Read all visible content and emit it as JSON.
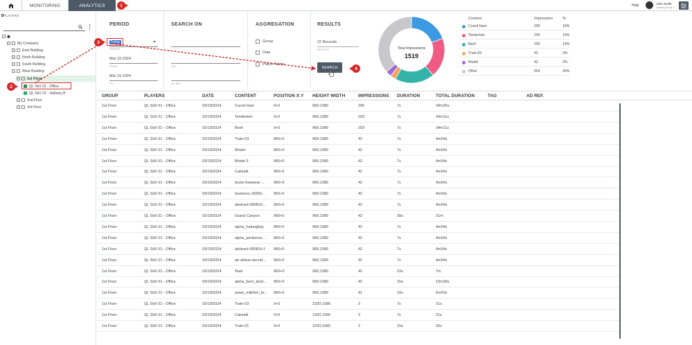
{
  "topbar": {
    "tabs": [
      {
        "label": "MONITORING"
      },
      {
        "label": "ANALYTICS"
      }
    ],
    "help_label": "Help",
    "user_name": "John Smith",
    "user_subtitle": "Training Group 1"
  },
  "players_panel": {
    "title": "PLAYERS",
    "tree": [
      {
        "label": ""
      },
      {
        "label": "My Company"
      },
      {
        "label": "East Building"
      },
      {
        "label": "North Building"
      },
      {
        "label": "South Building"
      },
      {
        "label": "West Building"
      },
      {
        "label": "1st Floor"
      },
      {
        "label": "QL StiX 01 - Office"
      },
      {
        "label": "QL StiX 02 - Hallway B"
      },
      {
        "label": "2nd Floor"
      },
      {
        "label": "3rd Floor"
      }
    ]
  },
  "filters": {
    "period": {
      "title": "PERIOD",
      "value": "Today",
      "caption": "PERIOD",
      "from_value": "Mar 19 2024",
      "from_caption": "FROM",
      "to_value": "Mar 19 2024",
      "to_caption": "TO"
    },
    "search_on": {
      "title": "SEARCH ON",
      "tag_caption": "TAG",
      "adref_caption": "AD REF"
    },
    "aggregation": {
      "title": "AGGREGATION",
      "options": [
        {
          "label": "Group"
        },
        {
          "label": "Date"
        },
        {
          "label": "Player Name"
        }
      ]
    },
    "results": {
      "title": "RESULTS",
      "value": "22 Records",
      "caption": "RESULTS",
      "button_label": "SEARCH"
    }
  },
  "chart_data": {
    "type": "pie",
    "center_label": "Total Impressions",
    "center_value": "1519",
    "legend_headers": [
      "Content",
      "Impression",
      "%"
    ],
    "slices": [
      {
        "name": "Cured Ham",
        "value": 295,
        "pct": "19%",
        "color": "#3b9ae1"
      },
      {
        "name": "Tenderloin",
        "value": 293,
        "pct": "19%",
        "color": "#ef5b84"
      },
      {
        "name": "Beef",
        "value": 293,
        "pct": "19%",
        "color": "#36b3a8"
      },
      {
        "name": "Train-03",
        "value": 42,
        "pct": "3%",
        "color": "#f5a25d"
      },
      {
        "name": "Model",
        "value": 42,
        "pct": "3%",
        "color": "#9b6ad6"
      },
      {
        "name": "Other",
        "value": 554,
        "pct": "36%",
        "color": "#c8c8cc"
      }
    ]
  },
  "table": {
    "headers": [
      "GROUP",
      "PLAYERS",
      "DATE",
      "CONTENT",
      "POSITION X:Y",
      "HEIGHT WIDTH",
      "IMPRESSIONS",
      "DURATION",
      "TOTAL DURATION",
      "TAG",
      "AD REF."
    ],
    "rows": [
      [
        "1st Floor",
        "QL StiX 01 - Office",
        "03/19/2024",
        "Cured Ham",
        "0+0",
        "960;1080",
        "295",
        "7s",
        "34m25s"
      ],
      [
        "1st Floor",
        "QL StiX 01 - Office",
        "03/19/2024",
        "Tenderloin",
        "0+0",
        "960;1080",
        "293",
        "7s",
        "34m11s"
      ],
      [
        "1st Floor",
        "QL StiX 01 - Office",
        "03/19/2024",
        "Beef",
        "0+0",
        "960;1080",
        "293",
        "7s",
        "34m11s"
      ],
      [
        "1st Floor",
        "QL StiX 01 - Office",
        "03/19/2024",
        "Train-03",
        "960+0",
        "960;1080",
        "42",
        "7s",
        "4m54s"
      ],
      [
        "1st Floor",
        "QL StiX 01 - Office",
        "03/19/2024",
        "Model",
        "960+0",
        "960;1080",
        "42",
        "7s",
        "4m54s"
      ],
      [
        "1st Floor",
        "QL StiX 01 - Office",
        "03/19/2024",
        "Model 3",
        "960+0",
        "960;1080",
        "42",
        "7s",
        "4m54s"
      ],
      [
        "1st Floor",
        "QL StiX 01 - Office",
        "03/19/2024",
        "Catwalk",
        "960+0",
        "960;1080",
        "42",
        "7s",
        "4m54s"
      ],
      [
        "1st Floor",
        "QL StiX 01 - Office",
        "03/19/2024",
        "boots-footwear-...",
        "960+0",
        "960;1080",
        "42",
        "7s",
        "4m54s"
      ],
      [
        "1st Floor",
        "QL StiX 01 - Office",
        "03/19/2024",
        "business-18369...",
        "960+0",
        "960;1080",
        "42",
        "7s",
        "4m54s"
      ],
      [
        "1st Floor",
        "QL StiX 01 - Office",
        "03/19/2024",
        "abstract-080816...",
        "960+0",
        "960;1080",
        "42",
        "7s",
        "4m54s"
      ],
      [
        "1st Floor",
        "QL StiX 01 - Office",
        "03/19/2024",
        "Grand Canyon",
        "960+0",
        "960;1080",
        "42",
        "30s",
        "21m"
      ],
      [
        "1st Floor",
        "QL StiX 01 - Office",
        "03/19/2024",
        "alpha_halongbay",
        "960+0",
        "960;1080",
        "42",
        "7s",
        "4m54s"
      ],
      [
        "1st Floor",
        "QL StiX 01 - Office",
        "03/19/2024",
        "alpha_peritomor...",
        "960+0",
        "960;1080",
        "42",
        "7s",
        "4m54s"
      ],
      [
        "1st Floor",
        "QL StiX 01 - Office",
        "03/19/2024",
        "abstract-080816-f",
        "960+0",
        "960;1080",
        "42",
        "7s",
        "4m54s"
      ],
      [
        "1st Floor",
        "QL StiX 01 - Office",
        "03/19/2024",
        "air-airbus-aircraf...",
        "960+0",
        "960;1080",
        "42",
        "7s",
        "4m54s"
      ],
      [
        "1st Floor",
        "QL StiX 01 - Office",
        "03/19/2024",
        "Noel",
        "960+0",
        "960;1080",
        "42",
        "10s",
        "7m"
      ],
      [
        "1st Floor",
        "QL StiX 01 - Office",
        "03/19/2024",
        "alpha_bern_land...",
        "960+0",
        "960;1080",
        "42",
        "15s",
        "10m30s"
      ],
      [
        "1st Floor",
        "QL StiX 01 - Office",
        "03/19/2024",
        "asian_milkfish_br...",
        "960+0",
        "960;1080",
        "41",
        "10s",
        "6m50s"
      ],
      [
        "1st Floor",
        "QL StiX 01 - Office",
        "03/19/2024",
        "Train-03",
        "0+0",
        "1920;1080",
        "3",
        "7s",
        "21s"
      ],
      [
        "1st Floor",
        "QL StiX 01 - Office",
        "03/19/2024",
        "Catwalk",
        "0+0",
        "1920;1080",
        "3",
        "7s",
        "21s"
      ],
      [
        "1st Floor",
        "QL StiX 01 - Office",
        "03/19/2024",
        "Train-01",
        "0+0",
        "1920;1080",
        "2",
        "15s",
        "30s"
      ]
    ]
  },
  "callouts": [
    {
      "label": "1"
    },
    {
      "label": "2"
    },
    {
      "label": "3"
    },
    {
      "label": "4"
    }
  ],
  "colors": {
    "accent": "#4d5a66",
    "callout": "#d62828",
    "selection": "#2c6fd8",
    "row_highlight": "#e1f3e6"
  }
}
